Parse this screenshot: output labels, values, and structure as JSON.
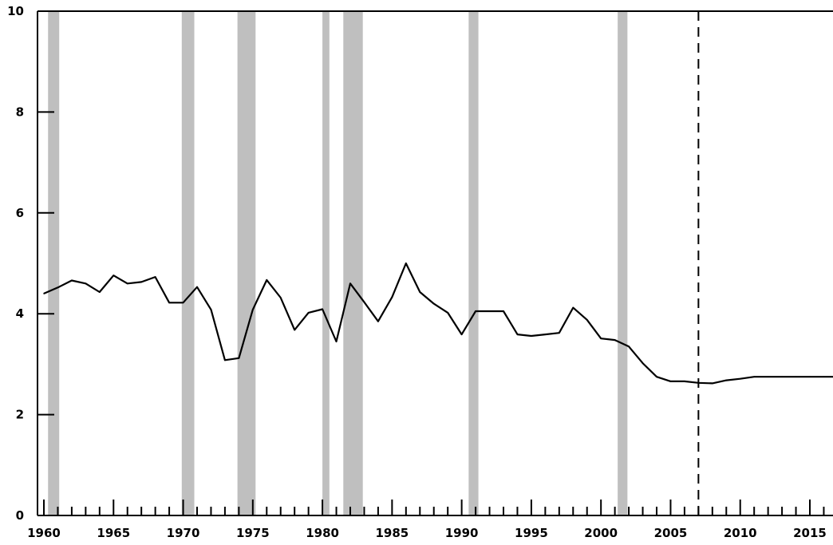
{
  "chart_data": {
    "type": "line",
    "title": "",
    "xlabel": "",
    "ylabel": "",
    "xlim": [
      1959.8,
      2017.2
    ],
    "ylim": [
      0,
      10
    ],
    "y_ticks": [
      0,
      2,
      4,
      6,
      8,
      10
    ],
    "y_tick_labels": [
      "0",
      "2",
      "4",
      "6",
      "8",
      "10"
    ],
    "x_major_ticks": [
      1960,
      1965,
      1970,
      1975,
      1980,
      1985,
      1990,
      1995,
      2000,
      2005,
      2010,
      2015
    ],
    "x_tick_labels": [
      "1960",
      "1965",
      "1970",
      "1975",
      "1980",
      "1985",
      "1990",
      "1995",
      "2000",
      "2005",
      "2010",
      "2015"
    ],
    "grid": false,
    "line_color": "#000000",
    "shade_color": "#bfbfbf",
    "shaded_periods": [
      [
        1960.3,
        1961.1
      ],
      [
        1969.9,
        1970.8
      ],
      [
        1973.9,
        1975.2
      ],
      [
        1980.0,
        1980.5
      ],
      [
        1981.5,
        1982.9
      ],
      [
        1990.5,
        1991.2
      ],
      [
        2001.2,
        2001.9
      ]
    ],
    "vertical_dashed_line_x": 2007.0,
    "series": [
      {
        "x": [
          1960,
          1961,
          1962,
          1963,
          1964,
          1965,
          1966,
          1967,
          1968,
          1969,
          1970,
          1971,
          1972,
          1973,
          1974,
          1975,
          1976,
          1977,
          1978,
          1979,
          1980,
          1981,
          1982,
          1983,
          1984,
          1985,
          1986,
          1987,
          1988,
          1989,
          1990,
          1991,
          1992,
          1993,
          1994,
          1995,
          1996,
          1997,
          1998,
          1999,
          2000,
          2001,
          2002,
          2003,
          2004,
          2005,
          2006,
          2007,
          2008,
          2009,
          2010,
          2011,
          2012,
          2013,
          2014,
          2015,
          2016,
          2017
        ],
        "values": [
          4.4,
          4.52,
          4.66,
          4.6,
          4.43,
          4.76,
          4.6,
          4.63,
          4.73,
          4.22,
          4.22,
          4.53,
          4.08,
          3.08,
          3.12,
          4.08,
          4.67,
          4.32,
          3.68,
          4.02,
          4.09,
          3.45,
          4.6,
          4.23,
          3.85,
          4.33,
          5.0,
          4.43,
          4.2,
          4.02,
          3.59,
          4.05,
          4.05,
          4.05,
          3.59,
          3.56,
          3.59,
          3.62,
          4.12,
          3.88,
          3.51,
          3.48,
          3.35,
          3.02,
          2.75,
          2.66,
          2.66,
          2.63,
          2.62,
          2.68,
          2.71,
          2.75,
          2.75,
          2.75,
          2.75,
          2.75,
          2.75,
          2.75
        ]
      }
    ]
  }
}
